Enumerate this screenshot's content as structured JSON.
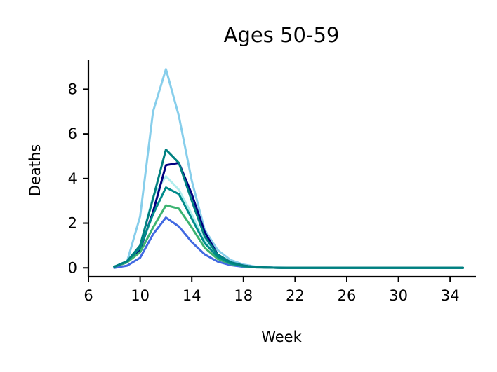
{
  "chart_data": {
    "type": "line",
    "title": "Ages 50-59",
    "xlabel": "Week",
    "ylabel": "Deaths",
    "xlim": [
      6,
      36
    ],
    "ylim": [
      -0.4,
      9.3
    ],
    "xticks": [
      6,
      10,
      14,
      18,
      22,
      26,
      30,
      34
    ],
    "yticks": [
      0,
      2,
      4,
      6,
      8
    ],
    "grid": false,
    "legend": "none",
    "x": [
      8,
      9,
      10,
      11,
      12,
      13,
      14,
      15,
      16,
      17,
      18,
      19,
      20,
      21,
      22,
      23,
      24,
      25,
      26,
      27,
      28,
      29,
      30,
      31,
      32,
      33,
      34,
      35
    ],
    "series": [
      {
        "color": "#87ceeb",
        "values": [
          0.05,
          0.3,
          2.3,
          7.0,
          8.9,
          6.8,
          3.9,
          1.7,
          0.8,
          0.35,
          0.15,
          0.05,
          0.02,
          0.01,
          0,
          0,
          0,
          0,
          0,
          0,
          0,
          0,
          0,
          0,
          0,
          0,
          0,
          0
        ]
      },
      {
        "color": "#afeeee",
        "values": [
          0.05,
          0.3,
          1.0,
          3.2,
          4.1,
          3.5,
          2.4,
          1.2,
          0.55,
          0.25,
          0.1,
          0.03,
          0.01,
          0,
          0,
          0,
          0,
          0,
          0,
          0,
          0,
          0,
          0,
          0,
          0,
          0,
          0,
          0
        ]
      },
      {
        "color": "#000080",
        "values": [
          0.05,
          0.25,
          0.8,
          2.5,
          4.6,
          4.7,
          3.3,
          1.6,
          0.6,
          0.25,
          0.1,
          0.03,
          0.01,
          0,
          0,
          0,
          0,
          0,
          0,
          0,
          0,
          0,
          0,
          0,
          0,
          0,
          0,
          0
        ]
      },
      {
        "color": "#4169e1",
        "values": [
          0.0,
          0.1,
          0.45,
          1.5,
          2.25,
          1.85,
          1.15,
          0.6,
          0.28,
          0.12,
          0.05,
          0.02,
          0.01,
          0,
          0,
          0,
          0,
          0,
          0,
          0,
          0,
          0,
          0,
          0,
          0,
          0,
          0,
          0
        ]
      },
      {
        "color": "#3cb371",
        "values": [
          0.05,
          0.25,
          0.7,
          1.8,
          2.8,
          2.65,
          1.8,
          0.9,
          0.4,
          0.18,
          0.07,
          0.02,
          0.01,
          0,
          0,
          0,
          0,
          0,
          0,
          0,
          0,
          0,
          0,
          0,
          0,
          0,
          0,
          0
        ]
      },
      {
        "color": "#008b8b",
        "values": [
          0.05,
          0.3,
          0.9,
          2.4,
          3.6,
          3.3,
          2.2,
          1.1,
          0.5,
          0.2,
          0.08,
          0.03,
          0.01,
          0,
          0,
          0,
          0,
          0,
          0,
          0,
          0,
          0,
          0,
          0,
          0,
          0,
          0,
          0
        ]
      },
      {
        "color": "#008080",
        "values": [
          0.05,
          0.3,
          1.0,
          3.1,
          5.3,
          4.7,
          3.0,
          1.4,
          0.6,
          0.25,
          0.1,
          0.03,
          0.01,
          0,
          0,
          0,
          0,
          0,
          0,
          0,
          0,
          0,
          0,
          0,
          0,
          0,
          0,
          0
        ]
      }
    ]
  }
}
